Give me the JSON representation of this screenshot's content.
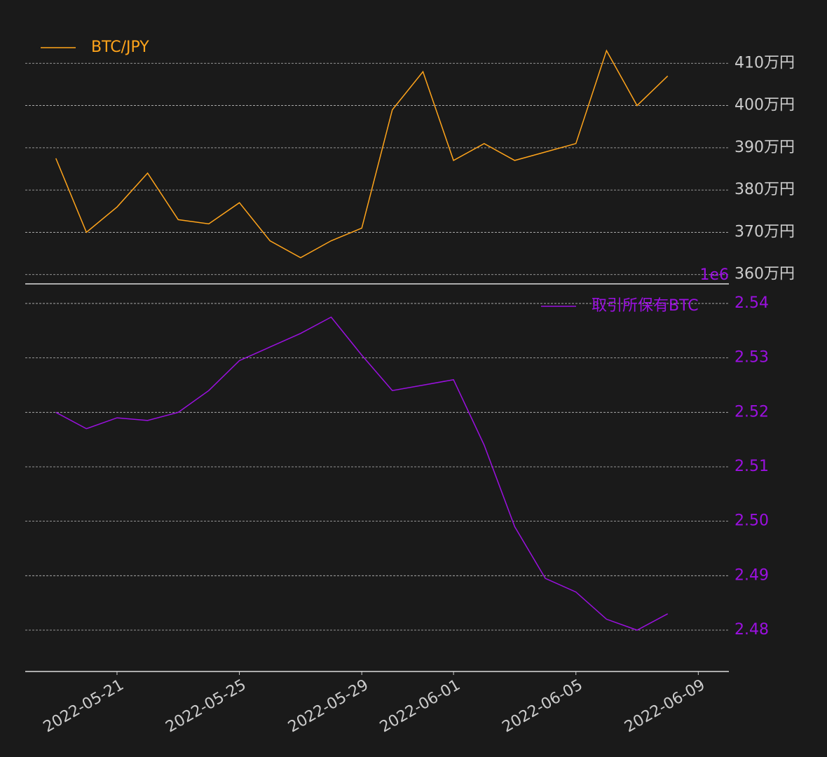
{
  "chart_data": [
    {
      "type": "line",
      "x": [
        "2022-05-19",
        "2022-05-20",
        "2022-05-21",
        "2022-05-22",
        "2022-05-23",
        "2022-05-24",
        "2022-05-25",
        "2022-05-26",
        "2022-05-27",
        "2022-05-28",
        "2022-05-29",
        "2022-05-30",
        "2022-05-31",
        "2022-06-01",
        "2022-06-02",
        "2022-06-03",
        "2022-06-04",
        "2022-06-05",
        "2022-06-06",
        "2022-06-07",
        "2022-06-08"
      ],
      "series": [
        {
          "name": "BTC/JPY",
          "color": "#ffa41b",
          "values": [
            3875000,
            3700000,
            3760000,
            3840000,
            3730000,
            3720000,
            3770000,
            3680000,
            3640000,
            3680000,
            3710000,
            3990000,
            4080000,
            3870000,
            3910000,
            3870000,
            3890000,
            3910000,
            4130000,
            4000000,
            4070000
          ]
        }
      ],
      "ylim": [
        3578000,
        4190000
      ],
      "yticks": [
        {
          "value": 3600000,
          "label": "360万円"
        },
        {
          "value": 3700000,
          "label": "370万円"
        },
        {
          "value": 3800000,
          "label": "380万円"
        },
        {
          "value": 3900000,
          "label": "390万円"
        },
        {
          "value": 4000000,
          "label": "400万円"
        },
        {
          "value": 4100000,
          "label": "410万円"
        }
      ],
      "xlim": [
        "2022-05-18",
        "2022-06-10"
      ],
      "grid": true,
      "legend": "upper left"
    },
    {
      "type": "line",
      "x": [
        "2022-05-19",
        "2022-05-20",
        "2022-05-21",
        "2022-05-22",
        "2022-05-23",
        "2022-05-24",
        "2022-05-25",
        "2022-05-26",
        "2022-05-27",
        "2022-05-28",
        "2022-05-29",
        "2022-05-30",
        "2022-05-31",
        "2022-06-01",
        "2022-06-02",
        "2022-06-03",
        "2022-06-04",
        "2022-06-05",
        "2022-06-06",
        "2022-06-07",
        "2022-06-08"
      ],
      "series": [
        {
          "name": "取引所保有BTC",
          "color": "#9b10e0",
          "values": [
            2520000,
            2517000,
            2519000,
            2518500,
            2520000,
            2524000,
            2529500,
            2532000,
            2534500,
            2537500,
            2530500,
            2524000,
            2525000,
            2526000,
            2514000,
            2499000,
            2489500,
            2487000,
            2482000,
            2480000,
            2483000
          ]
        }
      ],
      "ylim": [
        2472400,
        2543600
      ],
      "yticks": [
        {
          "value": 2480000,
          "label": "2.48"
        },
        {
          "value": 2490000,
          "label": "2.49"
        },
        {
          "value": 2500000,
          "label": "2.50"
        },
        {
          "value": 2510000,
          "label": "2.51"
        },
        {
          "value": 2520000,
          "label": "2.52"
        },
        {
          "value": 2530000,
          "label": "2.53"
        },
        {
          "value": 2540000,
          "label": "2.54"
        }
      ],
      "offset_label": "1e6",
      "xlim": [
        "2022-05-18",
        "2022-06-10"
      ],
      "xticks": [
        "2022-05-21",
        "2022-05-25",
        "2022-05-29",
        "2022-06-01",
        "2022-06-05",
        "2022-06-09"
      ],
      "grid": true,
      "legend": "upper right"
    }
  ]
}
